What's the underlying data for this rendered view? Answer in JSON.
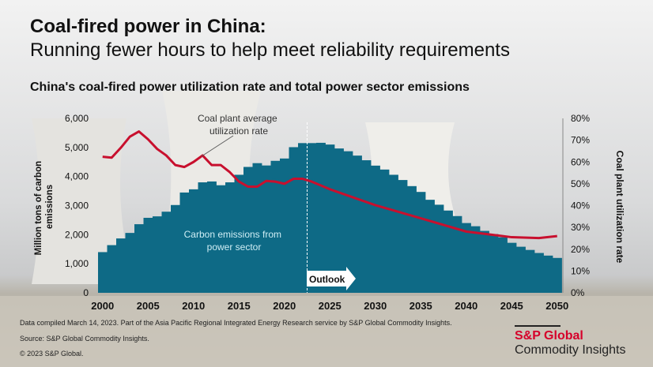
{
  "header": {
    "title": "Coal-fired power in China:",
    "subtitle": "Running fewer hours to help meet reliability requirements",
    "chart_title": "China's coal-fired power utilization rate and total power sector emissions"
  },
  "chart_data": {
    "type": "bar+line",
    "title": "China's coal-fired power utilization rate and total power sector emissions",
    "x": [
      2000,
      2001,
      2002,
      2003,
      2004,
      2005,
      2006,
      2007,
      2008,
      2009,
      2010,
      2011,
      2012,
      2013,
      2014,
      2015,
      2016,
      2017,
      2018,
      2019,
      2020,
      2021,
      2022,
      2023,
      2024,
      2025,
      2026,
      2027,
      2028,
      2029,
      2030,
      2031,
      2032,
      2033,
      2034,
      2035,
      2036,
      2037,
      2038,
      2039,
      2040,
      2041,
      2042,
      2043,
      2044,
      2045,
      2046,
      2047,
      2048,
      2049,
      2050
    ],
    "x_ticks": [
      "2000",
      "2005",
      "2010",
      "2015",
      "2020",
      "2025",
      "2030",
      "2035",
      "2040",
      "2045",
      "2050"
    ],
    "ylabel_left": "Million  tons of carbon emissions",
    "ylabel_left_lines": [
      "Million  tons of carbon",
      "emissions"
    ],
    "ylabel_right": "Coal plant utilization rate",
    "ylim_left": [
      0,
      6000
    ],
    "ylim_right": [
      0,
      80
    ],
    "y_ticks_left": [
      "0",
      "1,000",
      "2,000",
      "3,000",
      "4,000",
      "5,000",
      "6,000"
    ],
    "y_ticks_right": [
      "0%",
      "10%",
      "20%",
      "30%",
      "40%",
      "50%",
      "60%",
      "70%",
      "80%"
    ],
    "grid": false,
    "series": [
      {
        "name": "Carbon emissions from power sector",
        "label_lines": [
          "Carbon emissions from",
          "power sector"
        ],
        "type": "bar",
        "axis": "left",
        "color": "#0e6a86",
        "values": [
          1400,
          1640,
          1870,
          2060,
          2360,
          2580,
          2630,
          2790,
          3020,
          3450,
          3560,
          3800,
          3830,
          3700,
          3800,
          4060,
          4330,
          4460,
          4380,
          4540,
          4620,
          5010,
          5150,
          5150,
          5160,
          5100,
          4965,
          4870,
          4720,
          4560,
          4375,
          4240,
          4060,
          3880,
          3670,
          3470,
          3200,
          3030,
          2830,
          2640,
          2400,
          2290,
          2130,
          2020,
          1910,
          1720,
          1585,
          1475,
          1370,
          1280,
          1200
        ]
      },
      {
        "name": "Coal plant average utilization rate",
        "label_lines": [
          "Coal plant average",
          "utilization rate"
        ],
        "type": "line",
        "axis": "right",
        "color": "#c8102e",
        "x": [
          2000,
          2001,
          2002,
          2003,
          2004,
          2005,
          2006,
          2007,
          2008,
          2009,
          2010,
          2011,
          2012,
          2013,
          2014,
          2015,
          2016,
          2017,
          2018,
          2019,
          2020,
          2021,
          2022,
          2023,
          2025,
          2030,
          2035,
          2040,
          2045,
          2048,
          2050
        ],
        "values": [
          62.4,
          62,
          66.5,
          71.6,
          74,
          70.4,
          66,
          63,
          58.6,
          57.7,
          60,
          63,
          58.6,
          58.6,
          55.3,
          51,
          48.7,
          48.7,
          51.3,
          51,
          50,
          52.3,
          52.3,
          51,
          47.5,
          40.2,
          34.2,
          28.1,
          25.5,
          25.1,
          26
        ]
      }
    ],
    "annotations": {
      "outlook": "Outlook",
      "outlook_start_year": 2022.5
    }
  },
  "footer": {
    "note": "Data compiled March 14, 2023. Part of the Asia Pacific Regional Integrated Energy Research service by S&P Global Commodity Insights.",
    "source": "Source: S&P Global Commodity Insights.",
    "copyright": "© 2023 S&P Global."
  },
  "logo": {
    "line1": "S&P Global",
    "line2": "Commodity Insights"
  }
}
